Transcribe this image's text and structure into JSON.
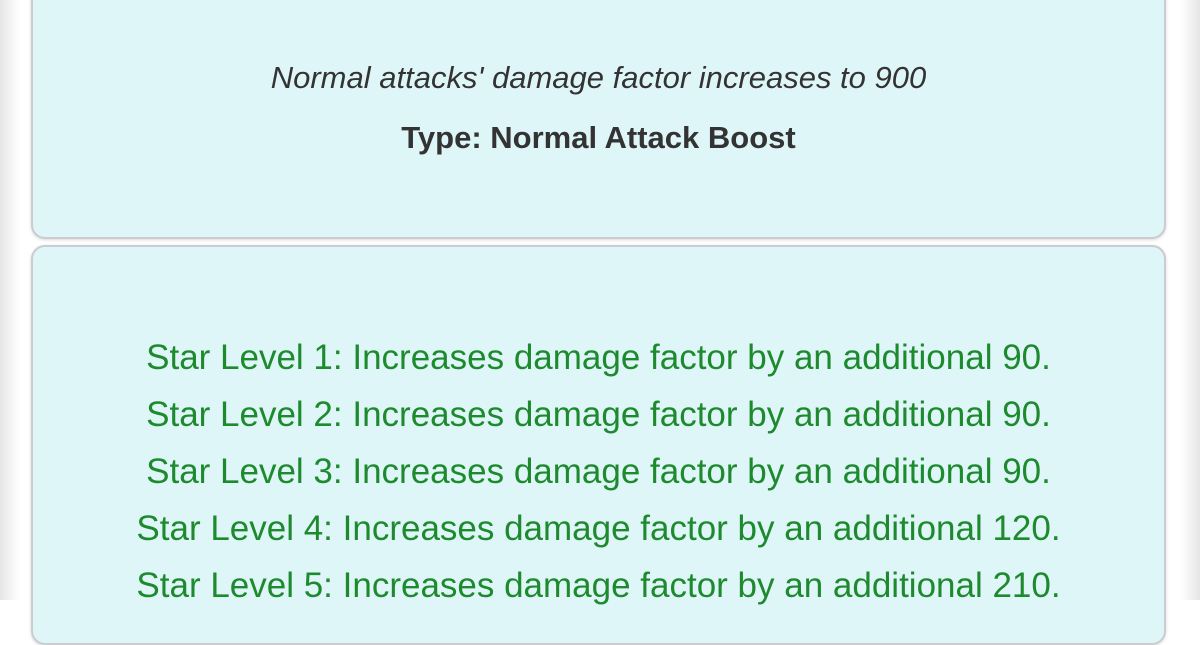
{
  "colors": {
    "card_bg": "#dff6f9",
    "level_text": "#1e8a2e"
  },
  "skill": {
    "description": "Normal attacks' damage factor increases to 900",
    "type": "Type: Normal Attack Boost"
  },
  "star_levels": [
    "Star Level 1: Increases damage factor by an additional 90.",
    "Star Level 2: Increases damage factor by an additional 90.",
    "Star Level 3: Increases damage factor by an additional 90.",
    "Star Level 4: Increases damage factor by an additional 120.",
    "Star Level 5: Increases damage factor by an additional 210."
  ]
}
